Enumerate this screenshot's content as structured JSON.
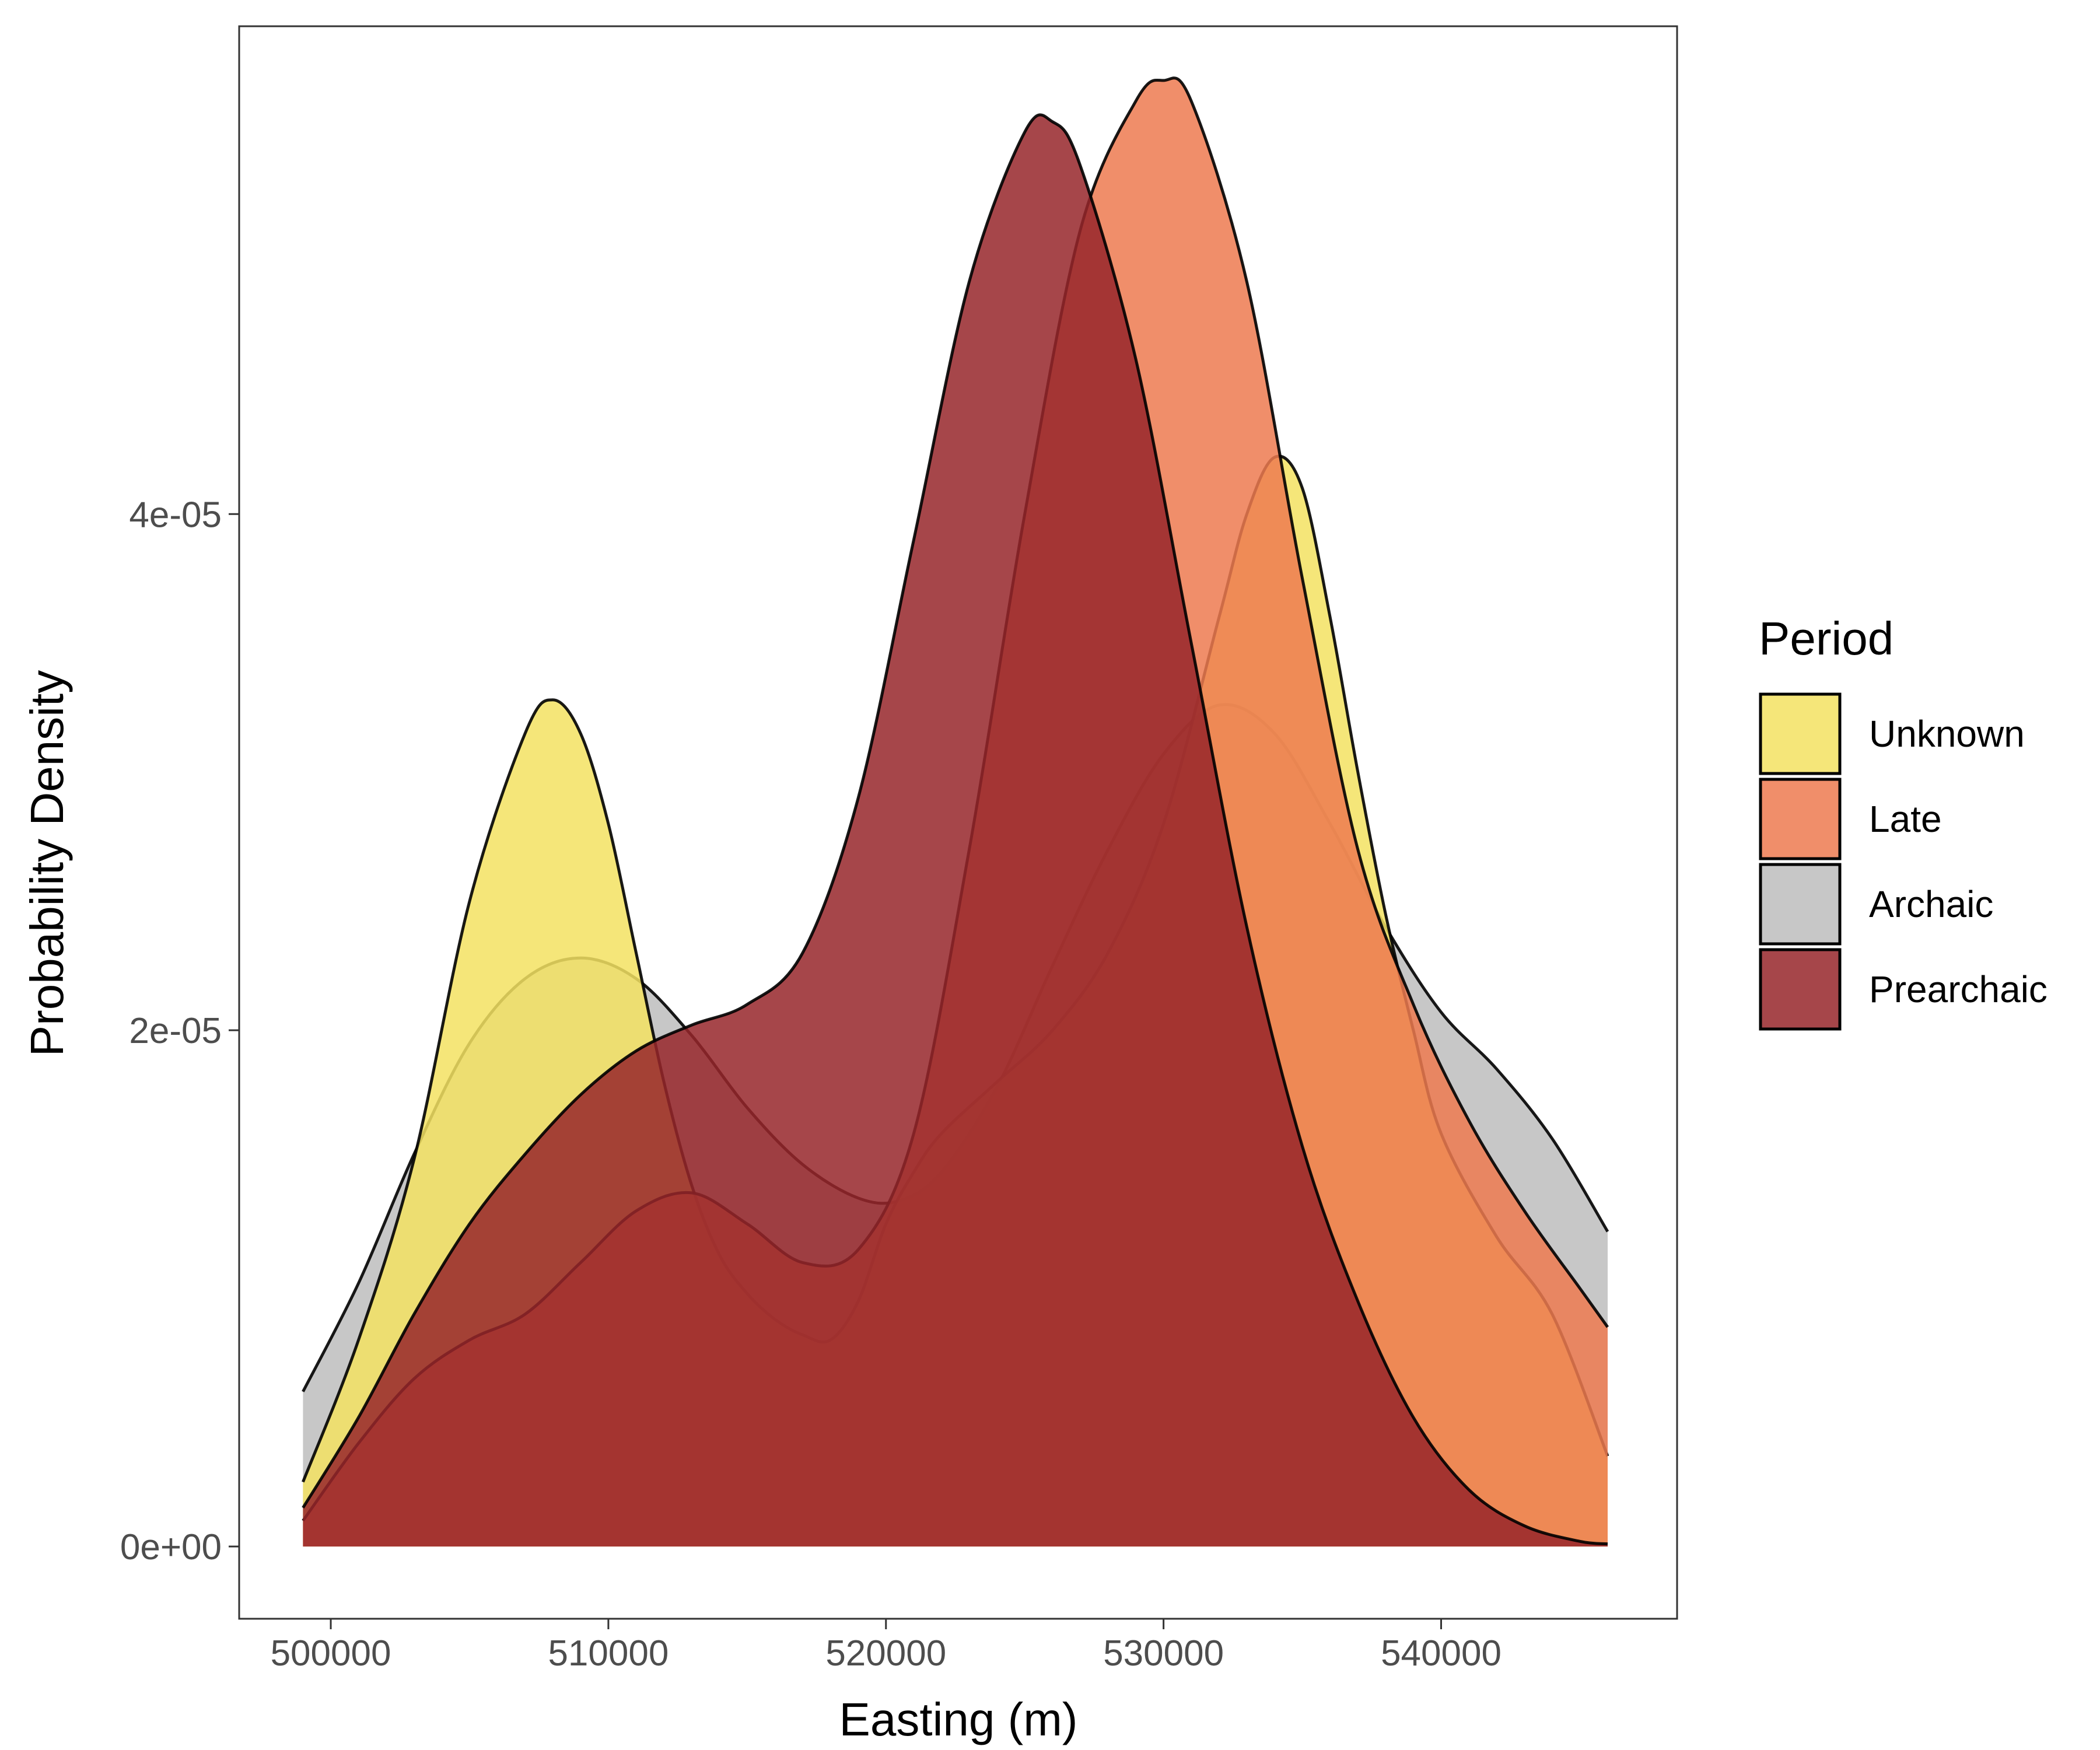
{
  "chart_data": {
    "type": "area",
    "title": "",
    "xlabel": "Easting (m)",
    "ylabel": "Probability Density",
    "xlim": [
      496700,
      548500
    ],
    "ylim": [
      -2.8e-06,
      5.89e-05
    ],
    "x_ticks": [
      500000,
      510000,
      520000,
      530000,
      540000
    ],
    "x_tick_labels": [
      "500000",
      "510000",
      "520000",
      "530000",
      "540000"
    ],
    "y_ticks": [
      0,
      2e-05,
      4e-05
    ],
    "y_tick_labels": [
      "0e+00",
      "2e-05",
      "4e-05"
    ],
    "grid": false,
    "legend": {
      "title": "Period",
      "position": "right",
      "entries": [
        "Unknown",
        "Late",
        "Archaic",
        "Prearchaic"
      ]
    },
    "series": [
      {
        "name": "Archaic",
        "color": "#bdbdbd",
        "points": [
          [
            499000,
            6e-06
          ],
          [
            501000,
            1.02e-05
          ],
          [
            503000,
            1.52e-05
          ],
          [
            505000,
            1.95e-05
          ],
          [
            507000,
            2.2e-05
          ],
          [
            509000,
            2.28e-05
          ],
          [
            511000,
            2.2e-05
          ],
          [
            513000,
            1.98e-05
          ],
          [
            515000,
            1.7e-05
          ],
          [
            517000,
            1.48e-05
          ],
          [
            519000,
            1.35e-05
          ],
          [
            520500,
            1.34e-05
          ],
          [
            522000,
            1.45e-05
          ],
          [
            524000,
            1.78e-05
          ],
          [
            526000,
            2.25e-05
          ],
          [
            528000,
            2.7e-05
          ],
          [
            530000,
            3.07e-05
          ],
          [
            532000,
            3.26e-05
          ],
          [
            534000,
            3.15e-05
          ],
          [
            536000,
            2.8e-05
          ],
          [
            538000,
            2.4e-05
          ],
          [
            540000,
            2.07e-05
          ],
          [
            542000,
            1.85e-05
          ],
          [
            544000,
            1.58e-05
          ],
          [
            546000,
            1.22e-05
          ]
        ]
      },
      {
        "name": "Unknown",
        "color": "#f3e262",
        "points": [
          [
            499000,
            2.5e-06
          ],
          [
            501000,
            8e-06
          ],
          [
            503000,
            1.5e-05
          ],
          [
            505000,
            2.5e-05
          ],
          [
            507000,
            3.15e-05
          ],
          [
            508000,
            3.28e-05
          ],
          [
            509000,
            3.15e-05
          ],
          [
            510000,
            2.8e-05
          ],
          [
            511000,
            2.3e-05
          ],
          [
            512000,
            1.8e-05
          ],
          [
            513000,
            1.4e-05
          ],
          [
            514000,
            1.13e-05
          ],
          [
            515000,
            9.8e-06
          ],
          [
            516000,
            8.8e-06
          ],
          [
            517000,
            8.2e-06
          ],
          [
            518000,
            8e-06
          ],
          [
            519000,
            9.5e-06
          ],
          [
            520000,
            1.25e-05
          ],
          [
            521000,
            1.45e-05
          ],
          [
            522000,
            1.6e-05
          ],
          [
            524000,
            1.8e-05
          ],
          [
            526000,
            2e-05
          ],
          [
            528000,
            2.3e-05
          ],
          [
            530000,
            2.8e-05
          ],
          [
            532000,
            3.6e-05
          ],
          [
            533000,
            4e-05
          ],
          [
            534000,
            4.22e-05
          ],
          [
            535000,
            4.1e-05
          ],
          [
            536000,
            3.6e-05
          ],
          [
            537000,
            3e-05
          ],
          [
            538000,
            2.45e-05
          ],
          [
            539000,
            2e-05
          ],
          [
            540000,
            1.6e-05
          ],
          [
            542000,
            1.2e-05
          ],
          [
            544000,
            9e-06
          ],
          [
            546000,
            3.5e-06
          ]
        ]
      },
      {
        "name": "Late",
        "color": "#ed7a50",
        "points": [
          [
            499000,
            1e-06
          ],
          [
            501000,
            4e-06
          ],
          [
            503000,
            6.5e-06
          ],
          [
            505000,
            8e-06
          ],
          [
            507000,
            9e-06
          ],
          [
            509000,
            1.1e-05
          ],
          [
            511000,
            1.3e-05
          ],
          [
            513000,
            1.37e-05
          ],
          [
            515000,
            1.25e-05
          ],
          [
            517000,
            1.1e-05
          ],
          [
            519000,
            1.15e-05
          ],
          [
            521000,
            1.6e-05
          ],
          [
            523000,
            2.7e-05
          ],
          [
            525000,
            4e-05
          ],
          [
            527000,
            5.1e-05
          ],
          [
            529000,
            5.6e-05
          ],
          [
            530000,
            5.68e-05
          ],
          [
            531000,
            5.6e-05
          ],
          [
            533000,
            4.9e-05
          ],
          [
            535000,
            3.75e-05
          ],
          [
            537000,
            2.7e-05
          ],
          [
            539000,
            2.1e-05
          ],
          [
            541000,
            1.65e-05
          ],
          [
            543000,
            1.3e-05
          ],
          [
            545000,
            1e-05
          ],
          [
            546000,
            8.5e-06
          ]
        ]
      },
      {
        "name": "Prearchaic",
        "color": "#96262a",
        "points": [
          [
            499000,
            1.5e-06
          ],
          [
            501000,
            5e-06
          ],
          [
            503000,
            9e-06
          ],
          [
            505000,
            1.25e-05
          ],
          [
            507000,
            1.52e-05
          ],
          [
            509000,
            1.75e-05
          ],
          [
            511000,
            1.92e-05
          ],
          [
            513000,
            2.02e-05
          ],
          [
            515000,
            2.1e-05
          ],
          [
            517000,
            2.3e-05
          ],
          [
            519000,
            2.9e-05
          ],
          [
            521000,
            3.9e-05
          ],
          [
            523000,
            4.9e-05
          ],
          [
            525000,
            5.48e-05
          ],
          [
            526000,
            5.52e-05
          ],
          [
            527000,
            5.35e-05
          ],
          [
            529000,
            4.6e-05
          ],
          [
            531000,
            3.5e-05
          ],
          [
            533000,
            2.4e-05
          ],
          [
            535000,
            1.55e-05
          ],
          [
            537000,
            9.5e-06
          ],
          [
            539000,
            5e-06
          ],
          [
            541000,
            2.2e-06
          ],
          [
            543000,
            8e-07
          ],
          [
            545000,
            2e-07
          ],
          [
            546000,
            1e-07
          ]
        ]
      }
    ]
  }
}
